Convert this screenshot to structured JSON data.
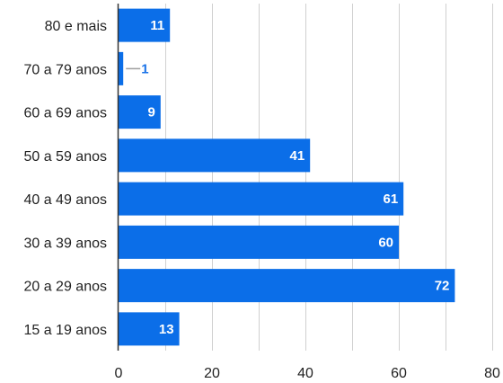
{
  "chart_data": {
    "type": "bar",
    "orientation": "horizontal",
    "categories": [
      "80 e mais",
      "70 a 79 anos",
      "60 a 69 anos",
      "50 a 59 anos",
      "40 a 49 anos",
      "30 a 39 anos",
      "20 a 29 anos",
      "15 a 19 anos"
    ],
    "values": [
      11,
      1,
      9,
      41,
      61,
      60,
      72,
      13
    ],
    "data_labels": [
      "11",
      "1",
      "9",
      "41",
      "61",
      "60",
      "72",
      "13"
    ],
    "xlim": [
      0,
      80
    ],
    "xticks": [
      0,
      20,
      40,
      60,
      80
    ],
    "xtick_labels": [
      "0",
      "20",
      "40",
      "60",
      "80"
    ],
    "title": "",
    "xlabel": "",
    "ylabel": "",
    "grid": true,
    "legend": "none",
    "colors": {
      "bar": "#0b6ee8",
      "grid": "#d0d0d0",
      "axis": "#333333",
      "label_inside": "#ffffff",
      "label_outside": "#1a73e8"
    }
  }
}
